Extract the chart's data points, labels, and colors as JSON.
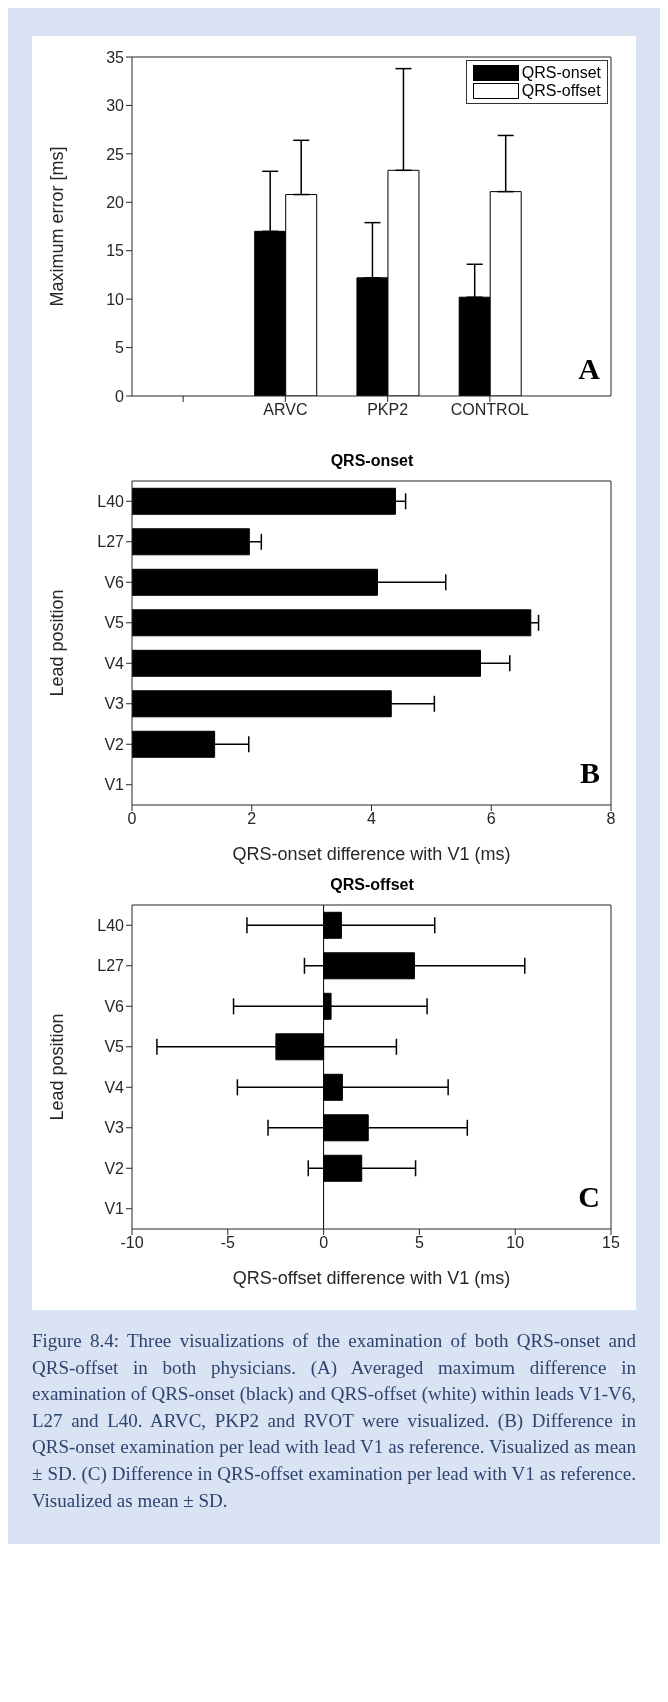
{
  "chart_data": [
    {
      "type": "bar",
      "ylabel": "Maximum error [ms]",
      "categories": [
        null,
        "ARVC",
        "PKP2",
        "CONTROL"
      ],
      "series": [
        {
          "name": "QRS-onset",
          "color": "#000000",
          "values": [
            null,
            17.0,
            12.2,
            10.2
          ],
          "errors": [
            null,
            [
              17.0,
              23.2
            ],
            [
              12.2,
              17.9
            ],
            [
              10.2,
              13.6
            ]
          ]
        },
        {
          "name": "QRS-offset",
          "color": "#ffffff",
          "values": [
            null,
            20.8,
            23.3,
            21.1
          ],
          "errors": [
            null,
            [
              20.8,
              26.4
            ],
            [
              23.3,
              33.8
            ],
            [
              21.1,
              26.9
            ]
          ]
        }
      ],
      "ylim": [
        0,
        35
      ],
      "yticks": [
        0,
        5,
        10,
        15,
        20,
        25,
        30,
        35
      ],
      "grid": false,
      "legend": "top right",
      "annotations": [
        "A"
      ]
    },
    {
      "type": "bar",
      "orientation": "horizontal",
      "title": "QRS-onset",
      "xlabel": "QRS-onset difference with V1 (ms)",
      "ylabel": "Lead position",
      "categories": [
        "L40",
        "L27",
        "V6",
        "V5",
        "V4",
        "V3",
        "V2",
        "V1"
      ],
      "values": [
        4.4,
        1.96,
        4.1,
        6.66,
        5.82,
        4.33,
        1.38,
        0
      ],
      "errors": [
        0.17,
        0.2,
        1.14,
        0.13,
        0.49,
        0.72,
        0.57,
        null
      ],
      "color": "#000000",
      "xlim": [
        0,
        8
      ],
      "xticks": [
        0,
        2,
        4,
        6,
        8
      ],
      "grid": false,
      "annotations": [
        "B"
      ]
    },
    {
      "type": "bar",
      "orientation": "horizontal",
      "title": "QRS-offset",
      "xlabel": "QRS-offset difference with V1 (ms)",
      "ylabel": "Lead position",
      "categories": [
        "L40",
        "L27",
        "V6",
        "V5",
        "V4",
        "V3",
        "V2",
        "V1"
      ],
      "values": [
        0.93,
        4.74,
        0.39,
        -2.49,
        0.98,
        2.33,
        1.99,
        0
      ],
      "errors": [
        [
          -4.0,
          5.8
        ],
        [
          -1.0,
          10.5
        ],
        [
          -4.7,
          5.4
        ],
        [
          -8.7,
          3.8
        ],
        [
          -4.5,
          6.5
        ],
        [
          -2.9,
          7.5
        ],
        [
          -0.8,
          4.8
        ],
        null
      ],
      "color": "#000000",
      "xlim": [
        -10,
        15
      ],
      "xticks": [
        -10,
        -5,
        0,
        5,
        10,
        15
      ],
      "grid": false,
      "ref_lines": [
        {
          "axis": "x",
          "value": 0,
          "color": "#000000"
        }
      ],
      "annotations": [
        "C",
        "Figure 8.4: Three visualizations of the examination of both QRS-onset and QRS-offset in both physicians. (A) Averaged maximum difference in examination of QRS-onset (black) and QRS-offset (white) within leads V1-V6, L27 and L40. ARVC, PKP2 and RVOT were visualized. (B) Difference in QRS-onset examination per lead with lead V1 as reference. Visualized as mean ± SD. (C) Difference in QRS-offset examination per lead with V1 as reference. Visualized as mean ± SD."
      ]
    }
  ]
}
